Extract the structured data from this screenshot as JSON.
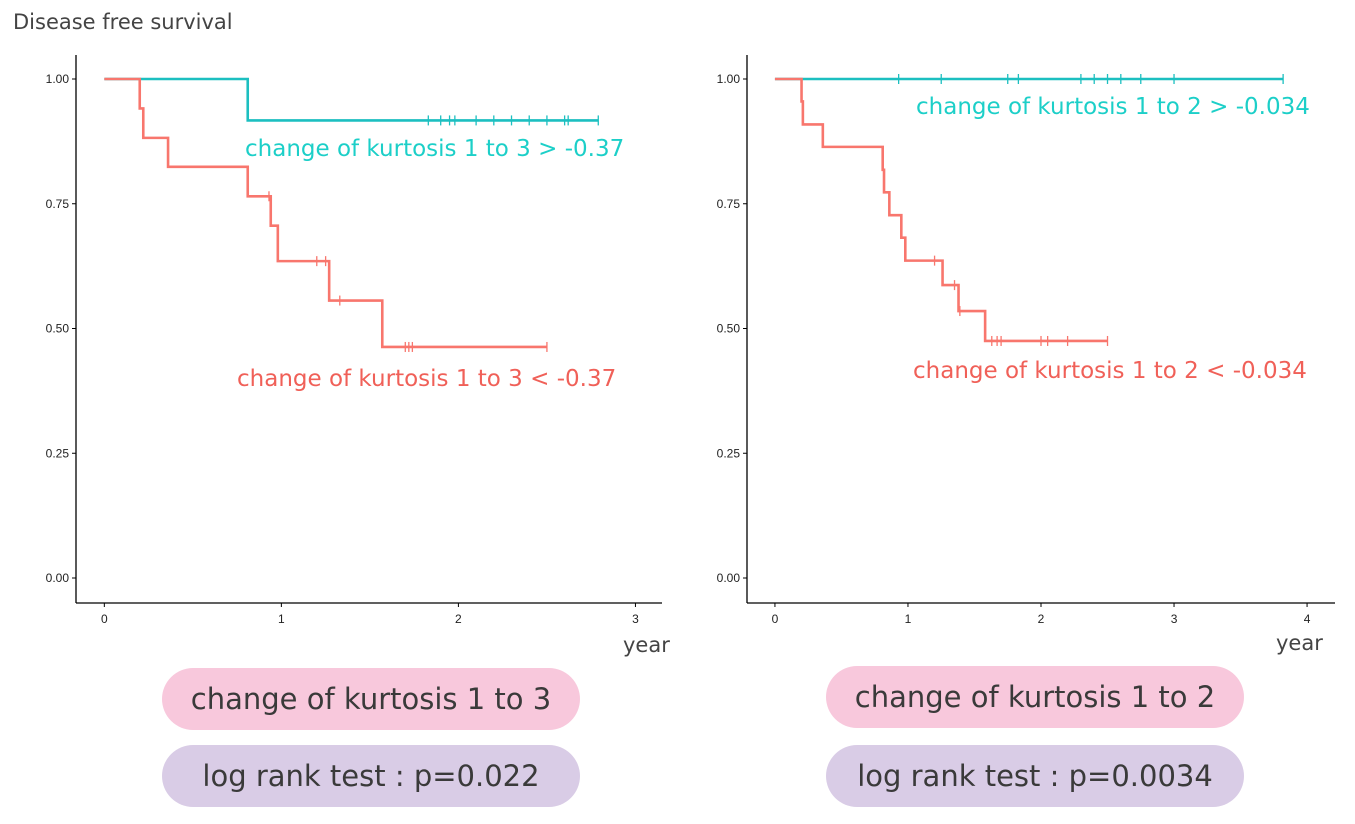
{
  "title": "Disease free survival",
  "colors": {
    "high": "#1cbfc0",
    "low": "#f8766d",
    "label_high": "#1ccfc8",
    "label_low": "#f06058"
  },
  "chart_data": [
    {
      "type": "line",
      "subtype": "kaplan-meier",
      "xlabel": "year",
      "xlim": [
        -0.16,
        3.15
      ],
      "ylim": [
        0,
        1
      ],
      "xticks": [
        "0",
        "1",
        "2",
        "3"
      ],
      "yticks": [
        "0.00",
        "0.25",
        "0.50",
        "0.75",
        "1.00"
      ],
      "series": [
        {
          "name": "change of kurtosis 1 to 3 > -0.37",
          "color_key": "high",
          "steps": [
            [
              0,
              1
            ],
            [
              0.81,
              0.917
            ]
          ],
          "end": 2.79,
          "censors": [
            1.83,
            1.9,
            1.95,
            1.98,
            2.1,
            2.2,
            2.3,
            2.4,
            2.5,
            2.6,
            2.62,
            2.79
          ]
        },
        {
          "name": "change of kurtosis 1 to 3 < -0.37",
          "color_key": "low",
          "steps": [
            [
              0,
              1
            ],
            [
              0.2,
              0.941
            ],
            [
              0.22,
              0.882
            ],
            [
              0.36,
              0.824
            ],
            [
              0.81,
              0.765
            ],
            [
              0.94,
              0.706
            ],
            [
              0.98,
              0.635
            ],
            [
              1.27,
              0.556
            ],
            [
              1.57,
              0.463
            ]
          ],
          "end": 2.5,
          "censors": [
            0.93,
            1.2,
            1.25,
            1.33,
            1.7,
            1.72,
            1.74,
            2.5
          ]
        }
      ],
      "panel_label": "change of kurtosis 1 to 3",
      "test_label": "log rank test : p=0.022"
    },
    {
      "type": "line",
      "subtype": "kaplan-meier",
      "xlabel": "year",
      "xlim": [
        -0.21,
        4.21
      ],
      "ylim": [
        0,
        1
      ],
      "xticks": [
        "0",
        "1",
        "2",
        "3",
        "4"
      ],
      "yticks": [
        "0.00",
        "0.25",
        "0.50",
        "0.75",
        "1.00"
      ],
      "series": [
        {
          "name": "change of kurtosis 1 to 2 > -0.034",
          "color_key": "high",
          "steps": [
            [
              0,
              1
            ]
          ],
          "end": 3.82,
          "censors": [
            0.93,
            1.25,
            1.75,
            1.83,
            2.3,
            2.4,
            2.5,
            2.6,
            2.75,
            3.0,
            3.82
          ]
        },
        {
          "name": "change of kurtosis 1 to 2 < -0.034",
          "color_key": "low",
          "steps": [
            [
              0,
              1
            ],
            [
              0.2,
              0.955
            ],
            [
              0.21,
              0.909
            ],
            [
              0.36,
              0.864
            ],
            [
              0.81,
              0.818
            ],
            [
              0.82,
              0.773
            ],
            [
              0.86,
              0.727
            ],
            [
              0.95,
              0.682
            ],
            [
              0.98,
              0.636
            ],
            [
              1.26,
              0.587
            ],
            [
              1.38,
              0.535
            ],
            [
              1.58,
              0.475
            ]
          ],
          "end": 2.5,
          "censors": [
            1.2,
            1.35,
            1.39,
            1.63,
            1.67,
            1.7,
            2.0,
            2.05,
            2.2,
            2.5
          ]
        }
      ],
      "panel_label": "change of kurtosis 1 to 2",
      "test_label": "log rank test : p=0.0034"
    }
  ]
}
